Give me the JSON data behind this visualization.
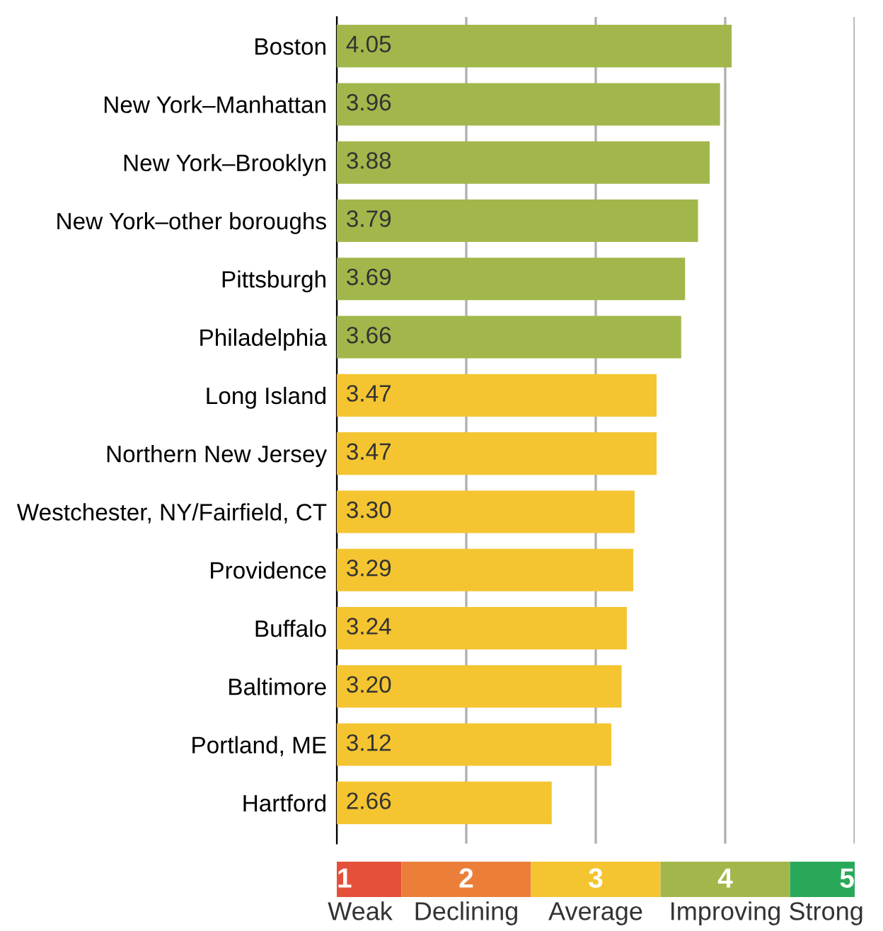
{
  "chart_data": {
    "type": "bar",
    "orientation": "horizontal",
    "categories": [
      "Boston",
      "New York–Manhattan",
      "New York–Brooklyn",
      "New York–other boroughs",
      "Pittsburgh",
      "Philadelphia",
      "Long Island",
      "Northern New Jersey",
      "Westchester, NY/Fairfield, CT",
      "Providence",
      "Buffalo",
      "Baltimore",
      "Portland, ME",
      "Hartford"
    ],
    "values": [
      4.05,
      3.96,
      3.88,
      3.79,
      3.69,
      3.66,
      3.47,
      3.47,
      3.3,
      3.29,
      3.24,
      3.2,
      3.12,
      2.66
    ],
    "colors": [
      "#a2b74b",
      "#a2b74b",
      "#a2b74b",
      "#a2b74b",
      "#a2b74b",
      "#a2b74b",
      "#f4c531",
      "#f4c531",
      "#f4c531",
      "#f4c531",
      "#f4c531",
      "#f4c531",
      "#f4c531",
      "#f4c531"
    ],
    "value_labels": [
      "4.05",
      "3.96",
      "3.88",
      "3.79",
      "3.69",
      "3.66",
      "3.47",
      "3.47",
      "3.30",
      "3.29",
      "3.24",
      "3.20",
      "3.12",
      "2.66"
    ],
    "xlim": [
      1,
      5
    ],
    "xticks": [
      1,
      2,
      3,
      4,
      5
    ],
    "grid": "x",
    "annotations": [
      "Weak",
      "Declining",
      "Average",
      "Improving",
      "Strong"
    ]
  }
}
